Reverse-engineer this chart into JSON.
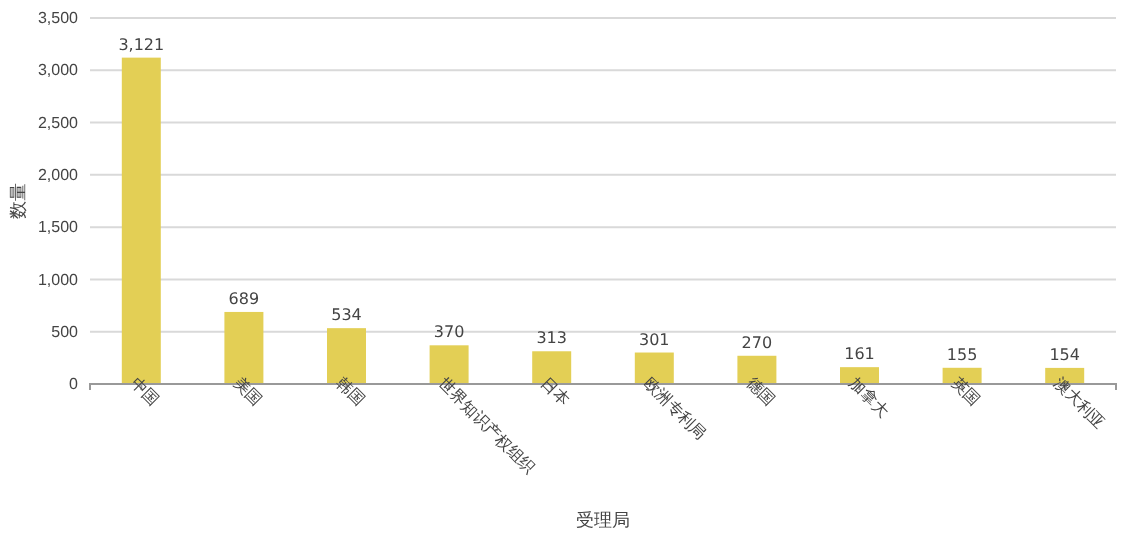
{
  "chart_data": {
    "type": "bar",
    "xlabel": "受理局",
    "ylabel": "数量",
    "categories": [
      "中国",
      "美国",
      "韩国",
      "世界知识产权组织",
      "日本",
      "欧洲专利局",
      "德国",
      "加拿大",
      "英国",
      "澳大利亚"
    ],
    "values": [
      3121,
      689,
      534,
      370,
      313,
      301,
      270,
      161,
      155,
      154
    ],
    "color": "#e3cf55",
    "ylim": [
      0,
      3500
    ],
    "yticks": [
      {
        "value": 0,
        "label": "0"
      },
      {
        "value": 500,
        "label": "500"
      },
      {
        "value": 1000,
        "label": "1,000"
      },
      {
        "value": 1500,
        "label": "1,500"
      },
      {
        "value": 2000,
        "label": "2,000"
      },
      {
        "value": 2500,
        "label": "2,500"
      },
      {
        "value": 3000,
        "label": "3,000"
      },
      {
        "value": 3500,
        "label": "3,500"
      }
    ],
    "value_labels": [
      "3,121",
      "689",
      "534",
      "370",
      "313",
      "301",
      "270",
      "161",
      "155",
      "154"
    ],
    "grid": "y"
  }
}
